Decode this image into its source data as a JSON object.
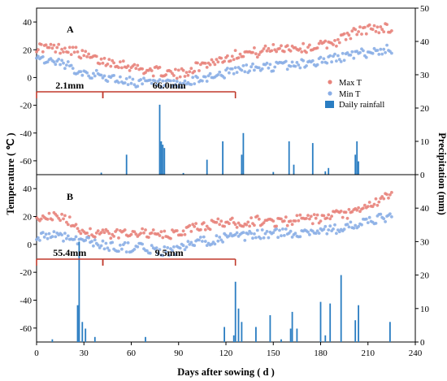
{
  "chart_data": [
    {
      "panel": "A",
      "type": "scatter+bar",
      "xlim": [
        0,
        240
      ],
      "ylim_left": [
        -70,
        50
      ],
      "ylim_right": [
        0,
        50
      ],
      "left_ticks": [
        -60,
        -40,
        -20,
        0,
        20,
        40
      ],
      "right_ticks": [
        0,
        10,
        20,
        30,
        40,
        50
      ],
      "legend": [
        "Max T",
        "Min T",
        "Daily rainfall"
      ],
      "period_annotations": [
        {
          "label": "2.1mm",
          "start": 0,
          "end": 42
        },
        {
          "label": "66.0mm",
          "start": 42,
          "end": 126
        }
      ],
      "series": [
        {
          "name": "Max T",
          "color": "#e8837b",
          "x": [
            0,
            10,
            20,
            30,
            40,
            50,
            60,
            70,
            80,
            90,
            100,
            110,
            120,
            130,
            140,
            150,
            160,
            170,
            180,
            190,
            200,
            210,
            220,
            225
          ],
          "values": [
            22,
            21,
            21,
            16,
            12,
            11,
            8,
            5,
            4,
            2,
            7,
            11,
            14,
            18,
            18,
            21,
            22,
            21,
            23,
            26,
            32,
            35,
            36,
            35
          ]
        },
        {
          "name": "Min T",
          "color": "#8aaee6",
          "x": [
            0,
            10,
            20,
            30,
            40,
            50,
            60,
            70,
            80,
            90,
            100,
            110,
            120,
            130,
            140,
            150,
            160,
            170,
            180,
            190,
            200,
            210,
            220,
            225
          ],
          "values": [
            15,
            11,
            8,
            4,
            1,
            -1,
            -3,
            -4,
            -5,
            -6,
            -3,
            1,
            3,
            6,
            7,
            8,
            9,
            10,
            12,
            14,
            16,
            18,
            20,
            20
          ]
        },
        {
          "name": "Daily rainfall",
          "color": "#2a7dc2",
          "x": [
            41,
            57,
            78,
            79,
            80,
            81,
            93,
            108,
            118,
            130,
            131,
            150,
            160,
            163,
            175,
            183,
            185,
            202,
            203,
            204
          ],
          "values": [
            0.6,
            6,
            21,
            10,
            9,
            8,
            0.5,
            4.5,
            10,
            6,
            12.5,
            0.8,
            10,
            3,
            9.5,
            1,
            2,
            6,
            10,
            4
          ]
        }
      ]
    },
    {
      "panel": "B",
      "type": "scatter+bar",
      "xlim": [
        0,
        240
      ],
      "ylim_left": [
        -70,
        50
      ],
      "ylim_right": [
        0,
        50
      ],
      "left_ticks": [
        -60,
        -40,
        -20,
        0,
        20,
        40
      ],
      "right_ticks": [
        0,
        10,
        20,
        30,
        40
      ],
      "period_annotations": [
        {
          "label": "55.4mm",
          "start": 0,
          "end": 42
        },
        {
          "label": "9.5mm",
          "start": 42,
          "end": 126
        }
      ],
      "series": [
        {
          "name": "Max T",
          "color": "#e8837b",
          "x": [
            0,
            10,
            20,
            30,
            40,
            50,
            60,
            70,
            80,
            90,
            100,
            110,
            120,
            130,
            140,
            150,
            160,
            170,
            180,
            190,
            200,
            210,
            220,
            225
          ],
          "values": [
            20,
            20,
            17,
            9,
            8,
            7,
            9,
            8,
            6,
            8,
            12,
            14,
            16,
            15,
            17,
            16,
            17,
            18,
            18,
            21,
            22,
            27,
            33,
            34
          ]
        },
        {
          "name": "Min T",
          "color": "#8aaee6",
          "x": [
            0,
            10,
            20,
            30,
            40,
            50,
            60,
            70,
            80,
            90,
            100,
            110,
            120,
            130,
            140,
            150,
            160,
            170,
            180,
            190,
            200,
            210,
            220,
            225
          ],
          "values": [
            6,
            7,
            5,
            3,
            0,
            -2,
            -2,
            -3,
            -5,
            -4,
            1,
            3,
            5,
            5,
            7,
            8,
            8,
            9,
            10,
            11,
            13,
            16,
            19,
            20
          ]
        },
        {
          "name": "Daily rainfall",
          "color": "#2a7dc2",
          "x": [
            10,
            26,
            27,
            29,
            31,
            37,
            69,
            119,
            125,
            126,
            128,
            130,
            139,
            148,
            155,
            161,
            162,
            165,
            180,
            183,
            186,
            193,
            202,
            204,
            224
          ],
          "values": [
            0.8,
            11,
            30,
            6,
            4,
            1.5,
            1.5,
            4.5,
            2,
            18,
            10,
            6,
            4.5,
            8,
            0.8,
            4,
            9,
            4,
            12,
            2,
            11.5,
            20,
            6.5,
            11,
            6
          ]
        }
      ]
    }
  ],
  "labels": {
    "panelA": "A",
    "panelB": "B",
    "ylabel_left": "Temperature ( ℃ )",
    "ylabel_right": "Precipitation (mm)",
    "xlabel": "Days after sowing ( d )",
    "x_ticks": [
      0,
      30,
      60,
      90,
      120,
      150,
      180,
      210,
      240
    ],
    "legend_max": "Max T",
    "legend_min": "Min T",
    "legend_rain": "Daily rainfall"
  }
}
